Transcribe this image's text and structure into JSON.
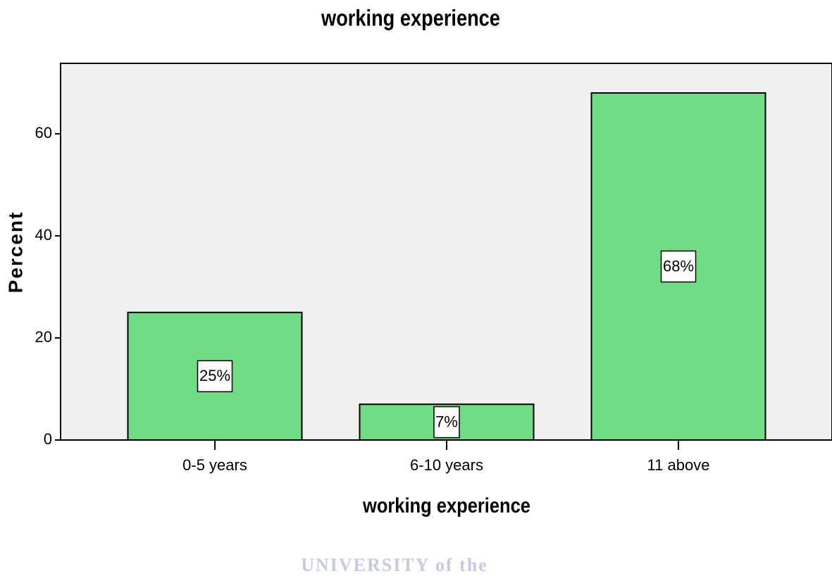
{
  "chart_data": {
    "type": "bar",
    "title": "working experience",
    "x_label": "working experience",
    "y_label": "Percent",
    "categories": [
      "0-5 years",
      "6-10 years",
      "11 above"
    ],
    "values": [
      25,
      7,
      68
    ],
    "value_labels": [
      "25%",
      "7%",
      "68%"
    ],
    "color": "#70dd85",
    "ylim": [
      0,
      73.8
    ],
    "yticks": [
      0,
      20,
      40,
      60
    ],
    "watermark": "UNIVERSITY of the"
  }
}
